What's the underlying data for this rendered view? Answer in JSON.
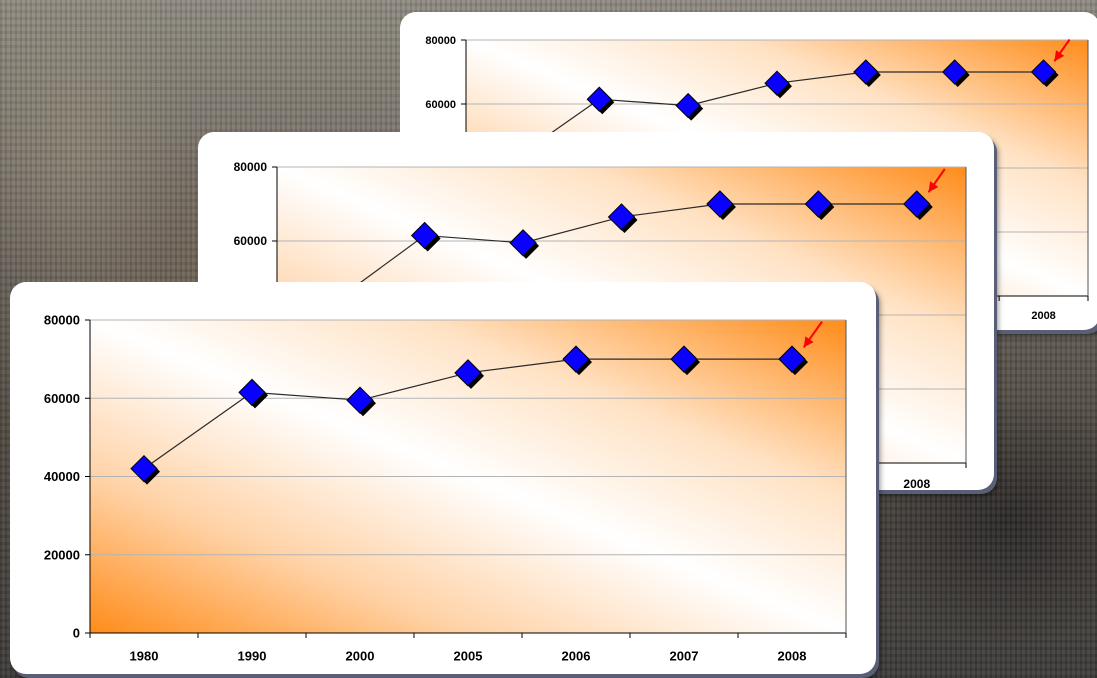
{
  "chart_data": [
    {
      "type": "line",
      "categories": [
        "1980",
        "1990",
        "2000",
        "2005",
        "2006",
        "2007",
        "2008"
      ],
      "values": [
        42000,
        61500,
        59500,
        66500,
        70000,
        70000,
        70000
      ],
      "title": "",
      "xlabel": "",
      "ylabel": "",
      "ylim": [
        0,
        80000
      ],
      "yticks": [
        0,
        20000,
        40000,
        60000,
        80000
      ],
      "grid": true,
      "marker": "diamond",
      "marker_color": "#0a00ff",
      "line_color": "#2a2a2a",
      "plot_gradient": [
        "#ff8c1a",
        "#ffffff"
      ],
      "annotation": "red arrow pointing to 2008 value",
      "annotation_color": "#ff0000"
    },
    {
      "type": "line",
      "categories": [
        "1980",
        "1990",
        "2000",
        "2005",
        "2006",
        "2007",
        "2008"
      ],
      "values": [
        42000,
        61500,
        59500,
        66500,
        70000,
        70000,
        70000
      ],
      "title": "",
      "ylim": [
        0,
        80000
      ],
      "yticks": [
        60000,
        80000
      ],
      "visible_xticks": [
        "2008"
      ],
      "marker": "diamond",
      "marker_color": "#0a00ff",
      "annotation_color": "#ff0000"
    },
    {
      "type": "line",
      "categories": [
        "1980",
        "1990",
        "2000",
        "2005",
        "2006",
        "2007",
        "2008"
      ],
      "values": [
        42000,
        61500,
        59500,
        66500,
        70000,
        70000,
        70000
      ],
      "title": "",
      "ylim": [
        0,
        80000
      ],
      "yticks": [
        60000,
        80000
      ],
      "visible_xticks": [
        "2008"
      ],
      "marker": "diamond",
      "marker_color": "#0a00ff",
      "annotation_color": "#ff0000"
    }
  ]
}
